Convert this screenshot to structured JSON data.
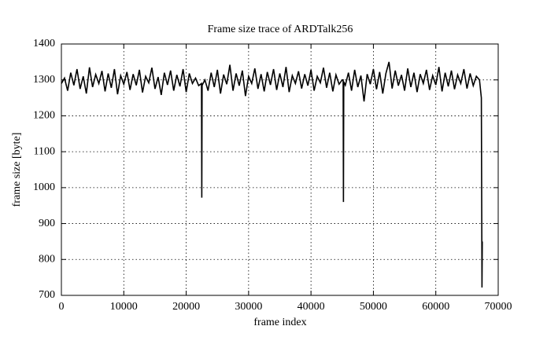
{
  "chart_data": {
    "type": "line",
    "title": "Frame size trace of ARDTalk256",
    "xlabel": "frame index",
    "ylabel": "frame size [byte]",
    "color": "#000000",
    "grid": true,
    "xlim": [
      0,
      70000
    ],
    "xticks": [
      0,
      10000,
      20000,
      30000,
      40000,
      50000,
      60000,
      70000
    ],
    "ylim": [
      700,
      1400
    ],
    "yticks": [
      700,
      800,
      900,
      1000,
      1100,
      1200,
      1300,
      1400
    ],
    "x": [
      0,
      500,
      1000,
      1500,
      2000,
      2500,
      3000,
      3500,
      4000,
      4500,
      5000,
      5500,
      6000,
      6500,
      7000,
      7500,
      8000,
      8500,
      9000,
      9500,
      10000,
      10500,
      11000,
      11500,
      12000,
      12500,
      13000,
      13500,
      14000,
      14500,
      15000,
      15500,
      16000,
      16500,
      17000,
      17500,
      18000,
      18500,
      19000,
      19500,
      20000,
      20500,
      21000,
      21500,
      22000,
      22450,
      22500,
      22550,
      23000,
      23500,
      24000,
      24500,
      25000,
      25500,
      26000,
      26500,
      27000,
      27500,
      28000,
      28500,
      29000,
      29500,
      30000,
      30500,
      31000,
      31500,
      32000,
      32500,
      33000,
      33500,
      34000,
      34500,
      35000,
      35500,
      36000,
      36500,
      37000,
      37500,
      38000,
      38500,
      39000,
      39500,
      40000,
      40500,
      41000,
      41500,
      42000,
      42500,
      43000,
      43500,
      44000,
      44500,
      45000,
      45150,
      45200,
      45250,
      45500,
      46000,
      46500,
      47000,
      47500,
      48000,
      48500,
      49000,
      49500,
      50000,
      50500,
      51000,
      51500,
      52000,
      52500,
      53000,
      53500,
      54000,
      54500,
      55000,
      55500,
      56000,
      56500,
      57000,
      57500,
      58000,
      58500,
      59000,
      59500,
      60000,
      60500,
      61000,
      61500,
      62000,
      62500,
      63000,
      63500,
      64000,
      64500,
      65000,
      65500,
      66000,
      66500,
      67000,
      67300,
      67400,
      67450
    ],
    "values": [
      1290,
      1305,
      1270,
      1320,
      1285,
      1330,
      1275,
      1310,
      1262,
      1335,
      1280,
      1315,
      1290,
      1325,
      1268,
      1318,
      1278,
      1330,
      1260,
      1312,
      1288,
      1322,
      1272,
      1316,
      1285,
      1328,
      1265,
      1310,
      1292,
      1334,
      1275,
      1308,
      1258,
      1320,
      1286,
      1326,
      1270,
      1314,
      1282,
      1330,
      1266,
      1318,
      1290,
      1305,
      1284,
      1290,
      972,
      1285,
      1300,
      1270,
      1320,
      1280,
      1328,
      1262,
      1315,
      1288,
      1342,
      1270,
      1318,
      1284,
      1326,
      1255,
      1310,
      1290,
      1332,
      1275,
      1316,
      1268,
      1322,
      1286,
      1330,
      1272,
      1318,
      1280,
      1336,
      1266,
      1312,
      1290,
      1324,
      1276,
      1316,
      1284,
      1328,
      1270,
      1310,
      1292,
      1334,
      1278,
      1320,
      1268,
      1314,
      1288,
      1300,
      1300,
      960,
      1295,
      1285,
      1320,
      1270,
      1328,
      1280,
      1312,
      1240,
      1316,
      1288,
      1330,
      1274,
      1322,
      1262,
      1318,
      1350,
      1276,
      1326,
      1284,
      1314,
      1270,
      1332,
      1280,
      1320,
      1266,
      1316,
      1290,
      1328,
      1272,
      1312,
      1286,
      1336,
      1268,
      1320,
      1282,
      1326,
      1274,
      1314,
      1290,
      1330,
      1276,
      1318,
      1284,
      1310,
      1300,
      1250,
      722,
      850
    ]
  }
}
